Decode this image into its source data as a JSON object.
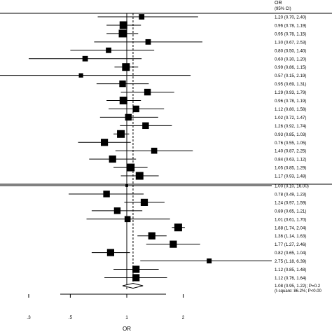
{
  "chart_data": {
    "type": "forest",
    "header": {
      "line1": "OR",
      "line2": "(95% CI)"
    },
    "xlabel": "OR",
    "scale": "log",
    "xlim": [
      0.25,
      3.5
    ],
    "xticks": [
      {
        "value": 0.3,
        "label": ".3"
      },
      {
        "value": 0.5,
        "label": ".5"
      },
      {
        "value": 1,
        "label": "1"
      },
      {
        "value": 2,
        "label": "2"
      }
    ],
    "overall_estimate": 1.08,
    "groups": [
      {
        "rows": [
          {
            "or": 1.2,
            "lo": 0.7,
            "hi": 2.4,
            "label": "1.20 (0.70, 2.40)",
            "weight": 0.6
          },
          {
            "or": 0.96,
            "lo": 0.78,
            "hi": 1.19,
            "label": "0.96 (0.78, 1.19)",
            "weight": 1.0
          },
          {
            "or": 0.95,
            "lo": 0.78,
            "hi": 1.15,
            "label": "0.95 (0.78, 1.15)",
            "weight": 1.0
          },
          {
            "or": 1.3,
            "lo": 0.67,
            "hi": 2.53,
            "label": "1.30 (0.67, 2.53)",
            "weight": 0.6
          },
          {
            "or": 0.8,
            "lo": 0.5,
            "hi": 1.4,
            "label": "0.80 (0.50, 1.40)",
            "weight": 0.6
          },
          {
            "or": 0.6,
            "lo": 0.3,
            "hi": 1.2,
            "label": "0.60 (0.30, 1.20)",
            "weight": 0.6
          },
          {
            "or": 0.99,
            "lo": 0.86,
            "hi": 1.15,
            "label": "0.99 (0.86, 1.15)",
            "weight": 1.0
          },
          {
            "or": 0.57,
            "lo": 0.15,
            "hi": 2.19,
            "label": "0.57 (0.15, 2.19)",
            "weight": 0.4
          },
          {
            "or": 0.95,
            "lo": 0.69,
            "hi": 1.31,
            "label": "0.95 (0.69, 1.31)",
            "weight": 0.8
          },
          {
            "or": 1.29,
            "lo": 0.93,
            "hi": 1.79,
            "label": "1.29 (0.93, 1.79)",
            "weight": 0.8
          },
          {
            "or": 0.96,
            "lo": 0.78,
            "hi": 1.19,
            "label": "0.96 (0.78, 1.19)",
            "weight": 1.0
          },
          {
            "or": 1.12,
            "lo": 0.8,
            "hi": 1.58,
            "label": "1.12 (0.80, 1.58)",
            "weight": 0.8
          },
          {
            "or": 1.02,
            "lo": 0.72,
            "hi": 1.47,
            "label": "1.02 (0.72, 1.47)",
            "weight": 0.8
          },
          {
            "or": 1.26,
            "lo": 0.92,
            "hi": 1.74,
            "label": "1.26 (0.92, 1.74)",
            "weight": 0.8
          },
          {
            "or": 0.93,
            "lo": 0.85,
            "hi": 1.03,
            "label": "0.93 (0.85, 1.03)",
            "weight": 1.0
          },
          {
            "or": 0.76,
            "lo": 0.55,
            "hi": 1.05,
            "label": "0.76 (0.55, 1.05)",
            "weight": 0.9
          },
          {
            "or": 1.4,
            "lo": 0.87,
            "hi": 2.25,
            "label": "1.40 (0.87, 2.25)",
            "weight": 0.7
          },
          {
            "or": 0.84,
            "lo": 0.63,
            "hi": 1.12,
            "label": "0.84 (0.63, 1.12)",
            "weight": 0.9
          },
          {
            "or": 1.05,
            "lo": 0.85,
            "hi": 1.29,
            "label": "1.05 (0.85, 1.29)",
            "weight": 1.0
          },
          {
            "or": 1.17,
            "lo": 0.93,
            "hi": 1.48,
            "label": "1.17 (0.93, 1.48)",
            "weight": 1.0
          }
        ]
      },
      {
        "rows": [
          {
            "or": 1.0,
            "lo": 0.1,
            "hi": 16.0,
            "label": "1.00 (0.10, 16.00)",
            "weight": 0.1
          },
          {
            "or": 0.78,
            "lo": 0.49,
            "hi": 1.23,
            "label": "0.78 (0.49, 1.23)",
            "weight": 0.8
          },
          {
            "or": 1.24,
            "lo": 0.97,
            "hi": 1.59,
            "label": "1.24 (0.97, 1.59)",
            "weight": 0.9
          },
          {
            "or": 0.89,
            "lo": 0.65,
            "hi": 1.21,
            "label": "0.89 (0.65, 1.21)",
            "weight": 0.8
          },
          {
            "or": 1.01,
            "lo": 0.61,
            "hi": 1.7,
            "label": "1.01 (0.61, 1.70)",
            "weight": 0.7
          },
          {
            "or": 1.88,
            "lo": 1.74,
            "hi": 2.04,
            "label": "1.88 (1.74, 2.04)",
            "weight": 1.0
          },
          {
            "or": 1.36,
            "lo": 1.14,
            "hi": 1.63,
            "label": "1.36 (1.14, 1.63)",
            "weight": 0.9
          },
          {
            "or": 1.77,
            "lo": 1.27,
            "hi": 2.46,
            "label": "1.77 (1.27, 2.46)",
            "weight": 0.9
          },
          {
            "or": 0.82,
            "lo": 0.65,
            "hi": 1.04,
            "label": "0.82 (0.65, 1.04)",
            "weight": 0.9
          },
          {
            "or": 2.75,
            "lo": 1.18,
            "hi": 6.39,
            "label": "2.75 (1.18, 6.39)",
            "weight": 0.5
          },
          {
            "or": 1.12,
            "lo": 0.85,
            "hi": 1.48,
            "label": "1.12 (0.85, 1.48)",
            "weight": 0.9
          },
          {
            "or": 1.12,
            "lo": 0.76,
            "hi": 1.64,
            "label": "1.12 (0.76, 1.64)",
            "weight": 0.9
          }
        ]
      }
    ],
    "overall": {
      "or": 1.08,
      "lo": 0.95,
      "hi": 1.22,
      "label": "1.08 (0.95, 1.22); P=0.2",
      "heterogeneity": "(I-square: 86.2%; P<0.00"
    }
  }
}
